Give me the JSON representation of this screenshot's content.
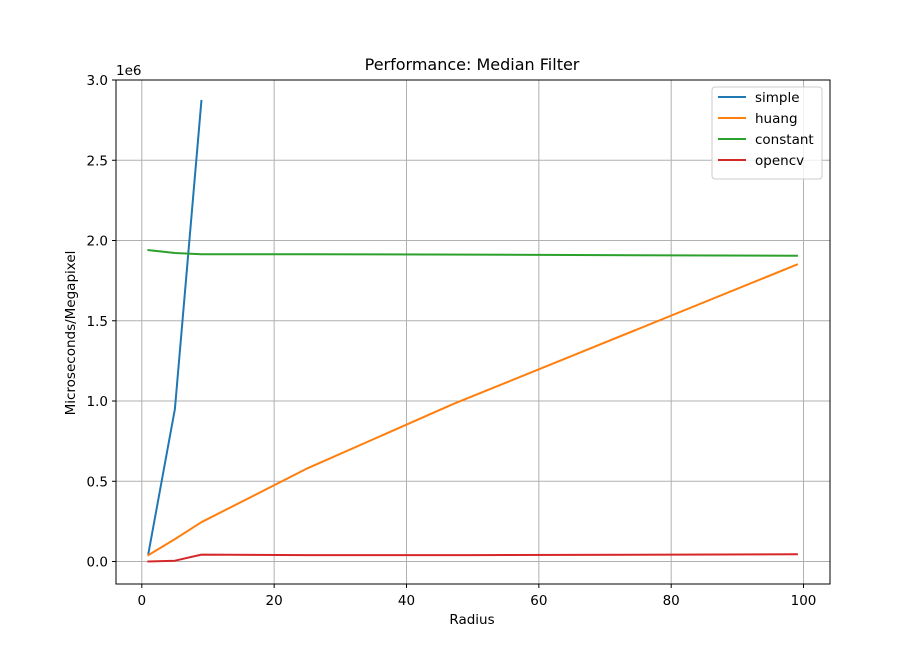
{
  "chart_data": {
    "type": "line",
    "title": "Performance: Median Filter",
    "xlabel": "Radius",
    "ylabel": "Microseconds/Megapixel",
    "y_offset_label": "1e6",
    "xlim": [
      -3.9,
      104
    ],
    "ylim": [
      -140000,
      3000000
    ],
    "x_ticks": [
      0,
      20,
      40,
      60,
      80,
      100
    ],
    "x_tick_labels": [
      "0",
      "20",
      "40",
      "60",
      "80",
      "100"
    ],
    "y_ticks": [
      0,
      500000,
      1000000,
      1500000,
      2000000,
      2500000,
      3000000
    ],
    "y_tick_labels": [
      "0.0",
      "0.5",
      "1.0",
      "1.5",
      "2.0",
      "2.5",
      "3.0"
    ],
    "grid": true,
    "legend_position": "upper-right",
    "series": [
      {
        "name": "simple",
        "color": "#1f77b4",
        "x": [
          1,
          5,
          9
        ],
        "y": [
          50000,
          950000,
          2870000
        ]
      },
      {
        "name": "huang",
        "color": "#ff7f0e",
        "x": [
          1,
          5,
          9,
          25,
          47,
          99
        ],
        "y": [
          40000,
          140000,
          245000,
          580000,
          980000,
          1850000
        ]
      },
      {
        "name": "constant",
        "color": "#2ca02c",
        "x": [
          1,
          5,
          9,
          25,
          50,
          99
        ],
        "y": [
          1940000,
          1922000,
          1915000,
          1915000,
          1912000,
          1905000
        ]
      },
      {
        "name": "opencv",
        "color": "#d62728",
        "x": [
          1,
          5,
          9,
          25,
          50,
          99
        ],
        "y": [
          0,
          5000,
          43000,
          40000,
          40000,
          45000
        ]
      }
    ]
  }
}
